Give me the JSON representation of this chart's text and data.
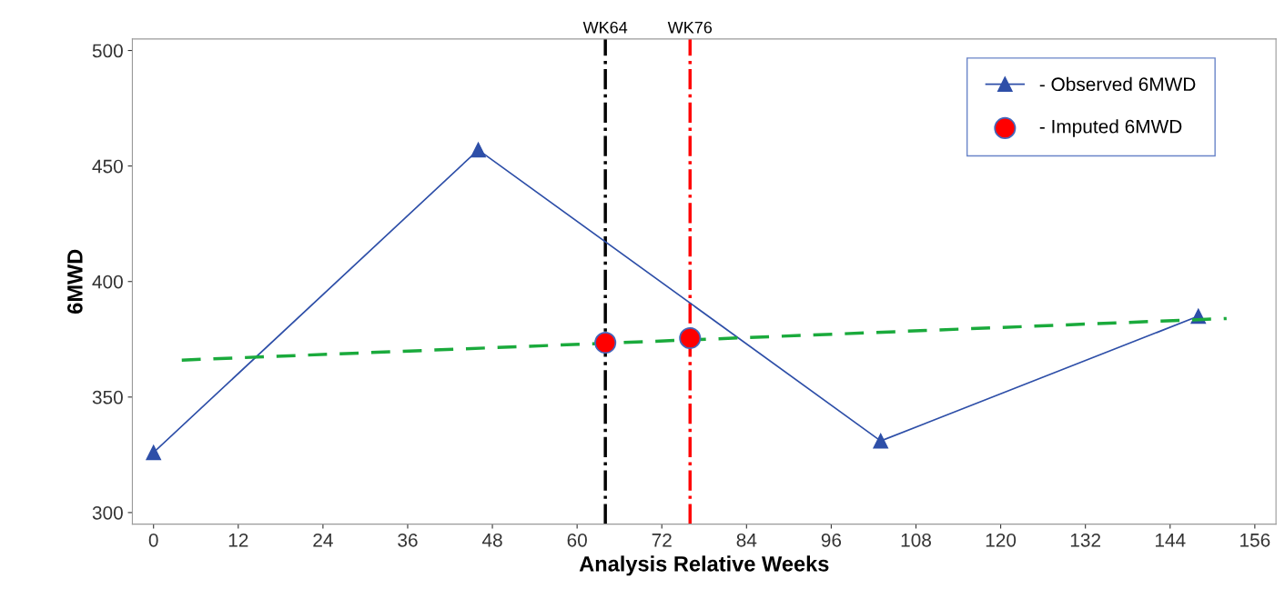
{
  "chart_data": {
    "type": "line",
    "xlabel": "Analysis Relative Weeks",
    "ylabel": "6MWD",
    "xlim": [
      -3,
      159
    ],
    "ylim": [
      295,
      505
    ],
    "xticks": [
      0,
      12,
      24,
      36,
      48,
      60,
      72,
      84,
      96,
      108,
      120,
      132,
      144,
      156
    ],
    "yticks": [
      300,
      350,
      400,
      450,
      500
    ],
    "grid": false,
    "legend": "top right",
    "series": [
      {
        "name": "- Observed 6MWD",
        "color": "#2e4fa8",
        "marker": "triangle",
        "line_style": "solid",
        "x": [
          0,
          46,
          103,
          148
        ],
        "values": [
          326,
          457,
          331,
          385
        ]
      },
      {
        "name": "- Imputed 6MWD",
        "type": "scatter",
        "color": "#ff0000",
        "marker": "circle",
        "x": [
          64,
          76
        ],
        "values": [
          373.5,
          375.5
        ]
      },
      {
        "color": "#1aaa3c",
        "marker": "none",
        "line_style": "dashed",
        "x": [
          4,
          152
        ],
        "values": [
          366,
          384
        ]
      }
    ],
    "ref_lines": [
      {
        "axis": "x",
        "value": 64,
        "label": "WK64",
        "color": "#000000",
        "line_style": "dashdot"
      },
      {
        "axis": "x",
        "value": 76,
        "label": "WK76",
        "color": "#ff0000",
        "line_style": "dashdot"
      }
    ]
  }
}
